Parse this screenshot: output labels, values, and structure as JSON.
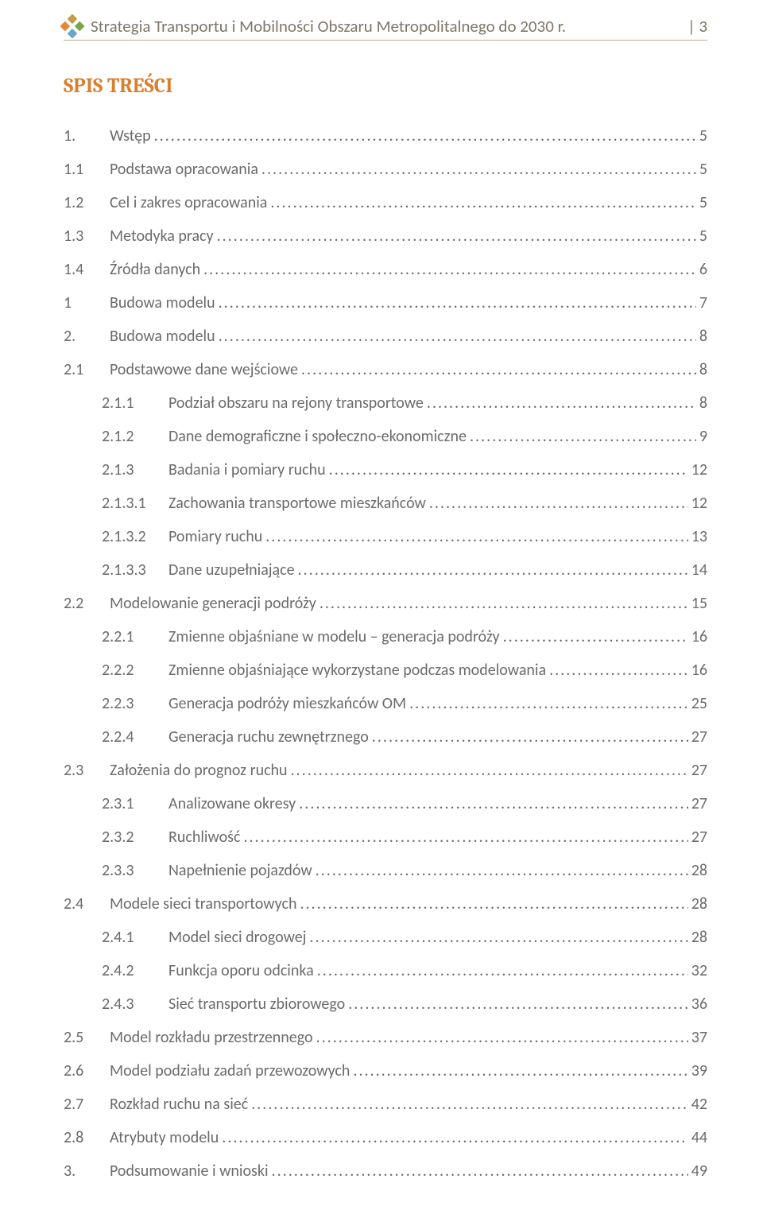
{
  "header": {
    "title": "Strategia Transportu i Mobilności Obszaru Metropolitalnego do 2030 r.",
    "page_marker": "| 3"
  },
  "toc_title": {
    "text": "SPIS TREŚCI",
    "color": "#d97f2f"
  },
  "colors": {
    "text": "#6b6b6b",
    "header_text": "#7f7668",
    "divider": "#b8a98f",
    "accent": "#d97f2f"
  },
  "leader_char": ".",
  "toc": [
    {
      "num": "1.",
      "label": "Wstęp",
      "page": "5",
      "level": 1
    },
    {
      "num": "1.1",
      "label": "Podstawa opracowania",
      "page": "5",
      "level": 2
    },
    {
      "num": "1.2",
      "label": "Cel i zakres opracowania",
      "page": "5",
      "level": 2
    },
    {
      "num": "1.3",
      "label": "Metodyka pracy",
      "page": "5",
      "level": 2
    },
    {
      "num": "1.4",
      "label": "Źródła danych",
      "page": "6",
      "level": 2
    },
    {
      "num": "1",
      "label": "Budowa modelu",
      "page": "7",
      "level": 1
    },
    {
      "num": "2.",
      "label": "Budowa modelu",
      "page": "8",
      "level": 1
    },
    {
      "num": "2.1",
      "label": "Podstawowe dane wejściowe",
      "page": "8",
      "level": 2
    },
    {
      "num": "2.1.1",
      "label": "Podział obszaru na rejony transportowe",
      "page": "8",
      "level": 3
    },
    {
      "num": "2.1.2",
      "label": "Dane demograficzne i społeczno-ekonomiczne",
      "page": "9",
      "level": 3
    },
    {
      "num": "2.1.3",
      "label": "Badania i pomiary ruchu",
      "page": "12",
      "level": 3
    },
    {
      "num": "2.1.3.1",
      "label": "Zachowania transportowe mieszkańców",
      "page": "12",
      "level": 4
    },
    {
      "num": "2.1.3.2",
      "label": "Pomiary ruchu",
      "page": "13",
      "level": 4
    },
    {
      "num": "2.1.3.3",
      "label": "Dane uzupełniające",
      "page": "14",
      "level": 4
    },
    {
      "num": "2.2",
      "label": "Modelowanie generacji podróży",
      "page": "15",
      "level": 2
    },
    {
      "num": "2.2.1",
      "label": "Zmienne objaśniane w modelu – generacja podróży",
      "page": "16",
      "level": 3
    },
    {
      "num": "2.2.2",
      "label": "Zmienne objaśniające wykorzystane podczas modelowania",
      "page": "16",
      "level": 3
    },
    {
      "num": "2.2.3",
      "label": "Generacja podróży mieszkańców OM",
      "page": "25",
      "level": 3
    },
    {
      "num": "2.2.4",
      "label": "Generacja ruchu zewnętrznego",
      "page": "27",
      "level": 3
    },
    {
      "num": "2.3",
      "label": "Założenia do prognoz ruchu",
      "page": "27",
      "level": 2
    },
    {
      "num": "2.3.1",
      "label": "Analizowane okresy",
      "page": "27",
      "level": 3
    },
    {
      "num": "2.3.2",
      "label": "Ruchliwość",
      "page": "27",
      "level": 3
    },
    {
      "num": "2.3.3",
      "label": "Napełnienie pojazdów",
      "page": "28",
      "level": 3
    },
    {
      "num": "2.4",
      "label": "Modele sieci transportowych",
      "page": "28",
      "level": 2
    },
    {
      "num": "2.4.1",
      "label": "Model sieci drogowej",
      "page": "28",
      "level": 3
    },
    {
      "num": "2.4.2",
      "label": "Funkcja oporu odcinka",
      "page": "32",
      "level": 3
    },
    {
      "num": "2.4.3",
      "label": "Sieć transportu zbiorowego",
      "page": "36",
      "level": 3
    },
    {
      "num": "2.5",
      "label": "Model rozkładu przestrzennego",
      "page": "37",
      "level": 2
    },
    {
      "num": "2.6",
      "label": "Model podziału zadań przewozowych",
      "page": "39",
      "level": 2
    },
    {
      "num": "2.7",
      "label": "Rozkład ruchu na sieć",
      "page": "42",
      "level": 2
    },
    {
      "num": "2.8",
      "label": "Atrybuty modelu",
      "page": "44",
      "level": 2
    },
    {
      "num": "3.",
      "label": "Podsumowanie i wnioski",
      "page": "49",
      "level": 1
    }
  ]
}
